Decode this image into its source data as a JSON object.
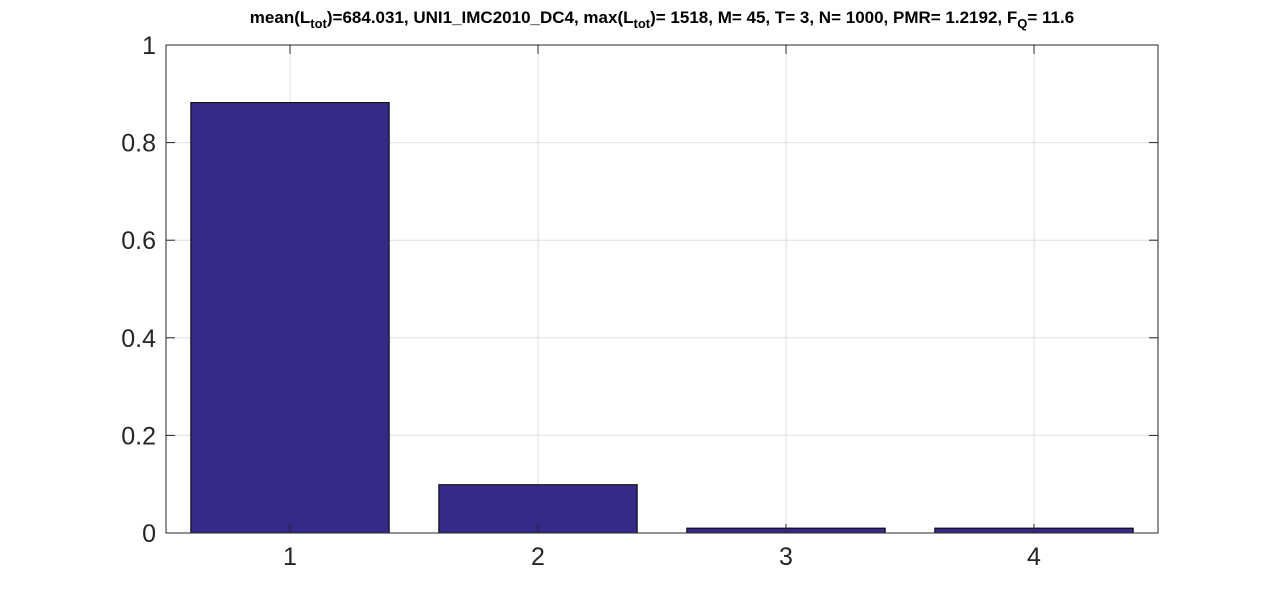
{
  "chart_data": {
    "type": "bar",
    "title_parts": [
      {
        "text": "mean(L",
        "sub": false
      },
      {
        "text": "tot",
        "sub": true
      },
      {
        "text": ")=684.031, UNI1_IMC2010_DC4, max(L",
        "sub": false
      },
      {
        "text": "tot",
        "sub": true
      },
      {
        "text": ")= 1518, M= 45, T= 3, N= 1000, PMR= 1.2192, F",
        "sub": false
      },
      {
        "text": "Q",
        "sub": true
      },
      {
        "text": "= 11.6",
        "sub": false
      }
    ],
    "categories": [
      "1",
      "2",
      "3",
      "4"
    ],
    "values": [
      0.882,
      0.099,
      0.01,
      0.01
    ],
    "ylim": [
      0,
      1
    ],
    "yticks": [
      0,
      0.2,
      0.4,
      0.6,
      0.8,
      1
    ],
    "ytick_labels": [
      "0",
      "0.2",
      "0.4",
      "0.6",
      "0.8",
      "1"
    ],
    "xlim": [
      0.5,
      4.5
    ],
    "grid": true,
    "bar_color": "#352a87",
    "edge_color": "#000000"
  }
}
